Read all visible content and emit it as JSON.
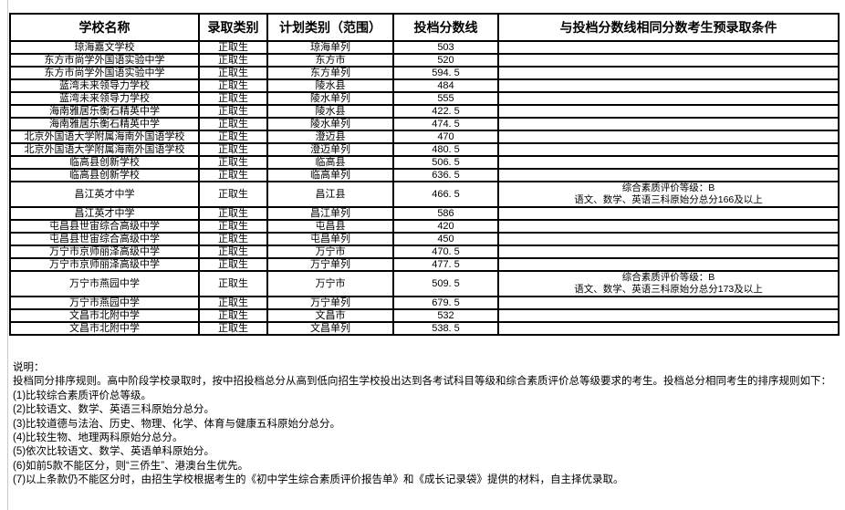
{
  "page": {
    "background": "#ffffff",
    "grid_color": "#000000"
  },
  "table": {
    "columns": [
      "学校名称",
      "录取类别",
      "计划类别（范围）",
      "投档分数线",
      "与投档分数线相同分数考生预录取条件"
    ],
    "rows": [
      {
        "school": "琼海嘉文学校",
        "category": "正取生",
        "plan": "琼海单列",
        "score": "503",
        "condition": []
      },
      {
        "school": "东方市尚学外国语实验中学",
        "category": "正取生",
        "plan": "东方市",
        "score": "520",
        "condition": []
      },
      {
        "school": "东方市尚学外国语实验中学",
        "category": "正取生",
        "plan": "东方单列",
        "score": "594. 5",
        "condition": []
      },
      {
        "school": "蓝湾未来领导力学校",
        "category": "正取生",
        "plan": "陵水县",
        "score": "484",
        "condition": []
      },
      {
        "school": "蓝湾未来领导力学校",
        "category": "正取生",
        "plan": "陵水单列",
        "score": "555",
        "condition": []
      },
      {
        "school": "海南雅居乐衡石精英中学",
        "category": "正取生",
        "plan": "陵水县",
        "score": "422. 5",
        "condition": []
      },
      {
        "school": "海南雅居乐衡石精英中学",
        "category": "正取生",
        "plan": "陵水单列",
        "score": "474. 5",
        "condition": []
      },
      {
        "school": "北京外国语大学附属海南外国语学校",
        "category": "正取生",
        "plan": "澄迈县",
        "score": "470",
        "condition": []
      },
      {
        "school": "北京外国语大学附属海南外国语学校",
        "category": "正取生",
        "plan": "澄迈单列",
        "score": "480. 5",
        "condition": []
      },
      {
        "school": "临高县创新学校",
        "category": "正取生",
        "plan": "临高县",
        "score": "506. 5",
        "condition": []
      },
      {
        "school": "临高县创新学校",
        "category": "正取生",
        "plan": "临高单列",
        "score": "636. 5",
        "condition": []
      },
      {
        "school": "昌江英才中学",
        "category": "正取生",
        "plan": "昌江县",
        "score": "466. 5",
        "condition": [
          "综合素质评价等级：B",
          "语文、数学、英语三科原始分总分166及以上"
        ]
      },
      {
        "school": "昌江英才中学",
        "category": "正取生",
        "plan": "昌江单列",
        "score": "586",
        "condition": []
      },
      {
        "school": "屯昌县世宙综合高级中学",
        "category": "正取生",
        "plan": "屯昌县",
        "score": "420",
        "condition": []
      },
      {
        "school": "屯昌县世宙综合高级中学",
        "category": "正取生",
        "plan": "屯昌单列",
        "score": "450",
        "condition": []
      },
      {
        "school": "万宁市京师丽泽高级中学",
        "category": "正取生",
        "plan": "万宁市",
        "score": "470. 5",
        "condition": []
      },
      {
        "school": "万宁市京师丽泽高级中学",
        "category": "正取生",
        "plan": "万宁单列",
        "score": "477. 5",
        "condition": []
      },
      {
        "school": "万宁市燕园中学",
        "category": "正取生",
        "plan": "万宁市",
        "score": "509. 5",
        "condition": [
          "综合素质评价等级：B",
          "语文、数学、英语三科原始分总分173及以上"
        ]
      },
      {
        "school": "万宁市燕园中学",
        "category": "正取生",
        "plan": "万宁单列",
        "score": "679. 5",
        "condition": []
      },
      {
        "school": "文昌市北附中学",
        "category": "正取生",
        "plan": "文昌市",
        "score": "532",
        "condition": []
      },
      {
        "school": "文昌市北附中学",
        "category": "正取生",
        "plan": "文昌单列",
        "score": "538. 5",
        "condition": []
      }
    ]
  },
  "notes": {
    "title": "说明：",
    "intro": "投档同分排序规则。高中阶段学校录取时，按中招投档总分从高到低向招生学校投出达到各考试科目等级和综合素质评价总等级要求的考生。投档总分相同考生的排序规则如下：",
    "items": [
      "(1)比较综合素质评价总等级。",
      "(2)比较语文、数学、英语三科原始分总分。",
      "(3)比较道德与法治、历史、物理、化学、体育与健康五科原始分总分。",
      "(4)比较生物、地理两科原始分总分。",
      "(5)依次比较语文、数学、英语单科原始分。",
      "(6)如前5款不能区分，则“三侨生”、港澳台生优先。",
      "(7)以上条款仍不能区分时，由招生学校根据考生的《初中学生综合素质评价报告单》和《成长记录袋》提供的材料，自主择优录取。"
    ]
  }
}
